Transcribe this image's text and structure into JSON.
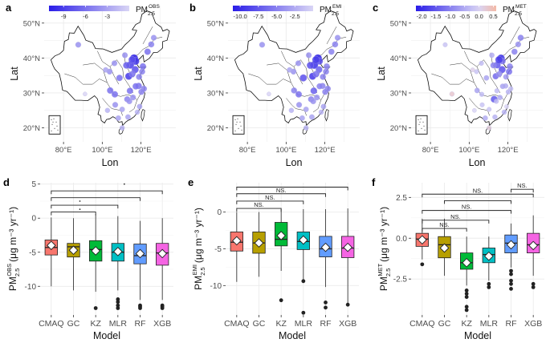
{
  "figure": {
    "map_xlabel": "Lon",
    "map_ylabel": "Lat",
    "lon_ticks": [
      "80°E",
      "100°E",
      "120°E"
    ],
    "lat_ticks": [
      "50°N",
      "40°N",
      "30°N",
      "20°N"
    ],
    "box_xlabel": "Model",
    "models": [
      "CMAQ",
      "GC",
      "KZ",
      "MLR",
      "RF",
      "XGB"
    ],
    "unit_text": "(μg m⁻³ yr⁻¹)",
    "colors": {
      "low": "#2a1de8",
      "mid": "#d9d5f5",
      "high": "#f4b9a6",
      "box_fill": [
        "#f8766d",
        "#b79f00",
        "#00ba38",
        "#00bfc4",
        "#619cff",
        "#f564e3"
      ],
      "grid": "#ebebeb"
    }
  },
  "chart_data": [
    {
      "type": "map",
      "panel": "a",
      "legend_title": "PM",
      "legend_sub": "2.5",
      "legend_sup": "OBS",
      "legend_ticks": [
        "-9",
        "-6",
        "-3"
      ],
      "color_range": [
        -11,
        0
      ],
      "lon_range": [
        70,
        138
      ],
      "lat_range": [
        16,
        55
      ],
      "points": [
        [
          116.4,
          39.9,
          -11
        ],
        [
          117.2,
          39.1,
          -9.5
        ],
        [
          114.5,
          38.0,
          -9
        ],
        [
          112.5,
          37.9,
          -7
        ],
        [
          113.6,
          34.7,
          -7
        ],
        [
          117.0,
          36.7,
          -8
        ],
        [
          118.8,
          32.0,
          -6
        ],
        [
          121.5,
          31.2,
          -5
        ],
        [
          120.2,
          30.3,
          -5
        ],
        [
          117.3,
          31.9,
          -6
        ],
        [
          114.3,
          30.6,
          -6
        ],
        [
          112.9,
          28.2,
          -5
        ],
        [
          115.9,
          28.7,
          -4
        ],
        [
          119.3,
          26.1,
          -3
        ],
        [
          113.3,
          23.1,
          -3
        ],
        [
          110.3,
          20.0,
          -2
        ],
        [
          106.5,
          29.6,
          -6
        ],
        [
          104.1,
          30.7,
          -6
        ],
        [
          106.7,
          26.6,
          -4
        ],
        [
          102.7,
          25.0,
          -2
        ],
        [
          108.9,
          34.3,
          -6
        ],
        [
          103.8,
          36.1,
          -4
        ],
        [
          101.8,
          36.6,
          -3
        ],
        [
          106.3,
          38.5,
          -4
        ],
        [
          111.7,
          40.8,
          -4
        ],
        [
          123.4,
          41.8,
          -6
        ],
        [
          125.3,
          43.9,
          -5
        ],
        [
          126.6,
          45.8,
          -4
        ],
        [
          87.6,
          43.8,
          -4
        ],
        [
          91.1,
          29.7,
          0
        ],
        [
          108.3,
          22.8,
          -3
        ],
        [
          113.7,
          34.8,
          -8
        ],
        [
          119.0,
          34.6,
          -5
        ],
        [
          120.6,
          36.1,
          -5
        ],
        [
          118.1,
          24.5,
          -2
        ],
        [
          115.4,
          39.5,
          -8
        ],
        [
          114.0,
          27.6,
          -4
        ],
        [
          110.3,
          25.3,
          -3
        ],
        [
          121.0,
          37.6,
          -6
        ],
        [
          115.5,
          35.4,
          -6
        ]
      ]
    },
    {
      "type": "map",
      "panel": "b",
      "legend_title": "PM",
      "legend_sub": "2.5",
      "legend_sup": "EMI",
      "legend_ticks": [
        "-10.0",
        "-7.5",
        "-5.0",
        "-2.5"
      ],
      "color_range": [
        -11,
        0
      ],
      "lon_range": [
        70,
        138
      ],
      "lat_range": [
        16,
        55
      ],
      "points": [
        [
          116.4,
          39.9,
          -11
        ],
        [
          117.2,
          39.1,
          -8
        ],
        [
          114.5,
          38.0,
          -10
        ],
        [
          112.5,
          37.9,
          -8
        ],
        [
          113.6,
          34.7,
          -7
        ],
        [
          117.0,
          36.7,
          -7
        ],
        [
          118.8,
          32.0,
          -5
        ],
        [
          121.5,
          31.2,
          -5
        ],
        [
          120.2,
          30.3,
          -5
        ],
        [
          117.3,
          31.9,
          -5
        ],
        [
          114.3,
          30.6,
          -7
        ],
        [
          112.9,
          28.2,
          -5
        ],
        [
          115.9,
          28.7,
          -4
        ],
        [
          119.3,
          26.1,
          -3
        ],
        [
          113.3,
          23.1,
          -3
        ],
        [
          110.3,
          20.0,
          -2
        ],
        [
          106.5,
          29.6,
          -6
        ],
        [
          104.1,
          30.7,
          -5
        ],
        [
          106.7,
          26.6,
          -4
        ],
        [
          102.7,
          25.0,
          -2
        ],
        [
          108.9,
          34.3,
          -8
        ],
        [
          103.8,
          36.1,
          -4
        ],
        [
          101.8,
          36.6,
          -3
        ],
        [
          106.3,
          38.5,
          -4
        ],
        [
          111.7,
          40.8,
          -4
        ],
        [
          123.4,
          41.8,
          -5
        ],
        [
          125.3,
          43.9,
          -5
        ],
        [
          126.6,
          45.8,
          -4
        ],
        [
          87.6,
          43.8,
          -4
        ],
        [
          91.1,
          29.7,
          0
        ],
        [
          108.3,
          22.8,
          -3
        ],
        [
          113.7,
          34.8,
          -8
        ],
        [
          119.0,
          34.6,
          -5
        ],
        [
          120.6,
          36.1,
          -5
        ],
        [
          118.1,
          24.5,
          -2
        ],
        [
          115.4,
          39.5,
          -9
        ],
        [
          114.0,
          27.6,
          -4
        ],
        [
          110.3,
          25.3,
          -3
        ],
        [
          121.0,
          37.6,
          -5
        ],
        [
          115.5,
          35.4,
          -6
        ]
      ]
    },
    {
      "type": "map",
      "panel": "c",
      "legend_title": "PM",
      "legend_sub": "2.5",
      "legend_sup": "MET",
      "legend_ticks": [
        "-2.0",
        "-1.5",
        "-1.0",
        "-0.5",
        "0.0",
        "0.5"
      ],
      "color_range": [
        -2.2,
        0.6
      ],
      "lon_range": [
        70,
        138
      ],
      "lat_range": [
        16,
        55
      ],
      "points": [
        [
          116.4,
          39.9,
          -2
        ],
        [
          117.2,
          39.1,
          -1.2
        ],
        [
          114.5,
          38.0,
          -1.5
        ],
        [
          112.5,
          37.9,
          -1.0
        ],
        [
          113.6,
          34.7,
          -0.8
        ],
        [
          117.0,
          36.7,
          -1.6
        ],
        [
          118.8,
          32.0,
          -0.5
        ],
        [
          121.5,
          31.2,
          -0.3
        ],
        [
          120.2,
          30.3,
          -0.4
        ],
        [
          117.3,
          31.9,
          -0.6
        ],
        [
          114.3,
          30.6,
          -0.3
        ],
        [
          112.9,
          28.2,
          -1.5
        ],
        [
          115.9,
          28.7,
          -0.5
        ],
        [
          119.3,
          26.1,
          0.0
        ],
        [
          113.3,
          23.1,
          -0.4
        ],
        [
          110.3,
          20.0,
          0.2
        ],
        [
          106.5,
          29.6,
          -0.3
        ],
        [
          104.1,
          30.7,
          -0.6
        ],
        [
          106.7,
          26.6,
          -0.2
        ],
        [
          102.7,
          25.0,
          0.0
        ],
        [
          108.9,
          34.3,
          -0.6
        ],
        [
          103.8,
          36.1,
          -0.2
        ],
        [
          101.8,
          36.6,
          0.1
        ],
        [
          106.3,
          38.5,
          -0.3
        ],
        [
          111.7,
          40.8,
          -0.5
        ],
        [
          123.4,
          41.8,
          -1.0
        ],
        [
          125.3,
          43.9,
          -0.8
        ],
        [
          126.6,
          45.8,
          -1.0
        ],
        [
          87.6,
          43.8,
          -0.2
        ],
        [
          91.1,
          29.7,
          0.3
        ],
        [
          108.3,
          22.8,
          -0.5
        ],
        [
          113.7,
          34.8,
          -1.1
        ],
        [
          119.0,
          34.6,
          -0.7
        ],
        [
          120.6,
          36.1,
          -1.2
        ],
        [
          118.1,
          24.5,
          -0.4
        ],
        [
          115.4,
          39.5,
          -1.8
        ],
        [
          114.0,
          27.6,
          -0.3
        ],
        [
          110.3,
          25.3,
          -0.2
        ],
        [
          121.0,
          37.6,
          -1.0
        ],
        [
          115.5,
          35.4,
          -0.9
        ]
      ]
    },
    {
      "type": "boxplot",
      "panel": "d",
      "ylabel_main": "PM",
      "ylabel_sub": "2.5",
      "ylabel_sup": "OBS",
      "ylim": [
        -14.2,
        5.2
      ],
      "yticks": [
        5,
        0,
        -5,
        -10
      ],
      "categories": [
        "CMAQ",
        "GC",
        "KZ",
        "MLR",
        "RF",
        "XGB"
      ],
      "boxes": [
        {
          "q1": -5.4,
          "median": -4.3,
          "q3": -3.2,
          "wlo": -10,
          "whi": 0.1,
          "mean": -4,
          "outliers": []
        },
        {
          "q1": -5.7,
          "median": -4.2,
          "q3": -3.7,
          "wlo": -10.6,
          "whi": 0.0,
          "mean": -4.7,
          "outliers": []
        },
        {
          "q1": -6.3,
          "median": -4.6,
          "q3": -3.3,
          "wlo": -10.8,
          "whi": 0.6,
          "mean": -4.8,
          "outliers": [
            -13.2
          ]
        },
        {
          "q1": -6.3,
          "median": -5.0,
          "q3": -3.7,
          "wlo": -10.6,
          "whi": 0.3,
          "mean": -4.9,
          "outliers": [
            -11.9,
            -12.3,
            -12.8,
            -13.2
          ]
        },
        {
          "q1": -6.7,
          "median": -5.5,
          "q3": -3.8,
          "wlo": -12,
          "whi": -0.4,
          "mean": -5.2,
          "outliers": [
            -12.8,
            -13.0,
            -13.2
          ]
        },
        {
          "q1": -6.9,
          "median": -5.1,
          "q3": -3.7,
          "wlo": -12,
          "whi": 0.0,
          "mean": -5.2,
          "outliers": [
            -12.8,
            -13.0,
            -13.2
          ]
        }
      ],
      "brackets": [
        {
          "from": "CMAQ",
          "to": "XGB",
          "y": 4.0,
          "label": ""
        },
        {
          "from": "CMAQ",
          "to": "RF",
          "y": 3.0,
          "label": ""
        },
        {
          "from": "CMAQ",
          "to": "MLR",
          "y": 1.9,
          "label": ""
        },
        {
          "from": "CMAQ",
          "to": "KZ",
          "y": 0.9,
          "label": ""
        }
      ],
      "extra_points": [
        {
          "x": "MLR",
          "y": 5.0
        },
        {
          "x": "GC",
          "y": 2.5
        },
        {
          "x": "GC",
          "y": 1.3
        }
      ]
    },
    {
      "type": "boxplot",
      "panel": "e",
      "ylabel_main": "PM",
      "ylabel_sub": "2.5",
      "ylabel_sup": "EMI",
      "ylim": [
        -14,
        4
      ],
      "yticks": [
        0,
        -5,
        -10
      ],
      "categories": [
        "CMAQ",
        "GC",
        "KZ",
        "MLR",
        "RF",
        "XGB"
      ],
      "boxes": [
        {
          "q1": -5.3,
          "median": -4.1,
          "q3": -2.7,
          "wlo": -9.5,
          "whi": 0.0,
          "mean": -3.9,
          "outliers": []
        },
        {
          "q1": -5.6,
          "median": -4.2,
          "q3": -2.7,
          "wlo": -8.8,
          "whi": 0.0,
          "mean": -4.2,
          "outliers": []
        },
        {
          "q1": -4.6,
          "median": -3.7,
          "q3": -1.4,
          "wlo": -8.0,
          "whi": 0.4,
          "mean": -3.2,
          "outliers": [
            -12.0
          ]
        },
        {
          "q1": -5.1,
          "median": -4.0,
          "q3": -2.7,
          "wlo": -9.2,
          "whi": 0.4,
          "mean": -3.8,
          "outliers": [
            -9.4,
            -13.7
          ]
        },
        {
          "q1": -6.1,
          "median": -5.0,
          "q3": -3.3,
          "wlo": -10.2,
          "whi": 0.4,
          "mean": -4.8,
          "outliers": [
            -12.3,
            -13.0
          ]
        },
        {
          "q1": -6.2,
          "median": -4.9,
          "q3": -3.3,
          "wlo": -12.4,
          "whi": 0.5,
          "mean": -4.8,
          "outliers": [
            -12.6
          ]
        }
      ],
      "brackets": [
        {
          "from": "CMAQ",
          "to": "XGB",
          "y": 3.4,
          "label": ""
        },
        {
          "from": "CMAQ",
          "to": "RF",
          "y": 2.5,
          "label": "NS."
        },
        {
          "from": "CMAQ",
          "to": "MLR",
          "y": 1.5,
          "label": "NS."
        },
        {
          "from": "CMAQ",
          "to": "KZ",
          "y": 0.5,
          "label": "NS."
        }
      ],
      "extra_points": []
    },
    {
      "type": "boxplot",
      "panel": "f",
      "ylabel_main": "PM",
      "ylabel_sub": "2.5",
      "ylabel_sup": "MET",
      "ylim": [
        -4.7,
        3.4
      ],
      "yticks": [
        2.5,
        0.0,
        -2.5
      ],
      "categories": [
        "CMAQ",
        "GC",
        "KZ",
        "MLR",
        "RF",
        "XGB"
      ],
      "boxes": [
        {
          "q1": -0.5,
          "median": -0.05,
          "q3": 0.3,
          "wlo": -1.3,
          "whi": 1.2,
          "mean": -0.1,
          "outliers": [
            -1.6
          ]
        },
        {
          "q1": -1.2,
          "median": -0.4,
          "q3": 0.1,
          "wlo": -2.3,
          "whi": 1.2,
          "mean": -0.6,
          "outliers": []
        },
        {
          "q1": -1.9,
          "median": -1.5,
          "q3": -0.9,
          "wlo": -2.9,
          "whi": 0.1,
          "mean": -1.5,
          "outliers": [
            -3.2,
            -3.4,
            -3.6,
            -4.2,
            -4.4
          ]
        },
        {
          "q1": -1.5,
          "median": -1.0,
          "q3": -0.6,
          "wlo": -2.6,
          "whi": 0.1,
          "mean": -1.1,
          "outliers": [
            -2.8,
            -3.0
          ]
        },
        {
          "q1": -0.9,
          "median": -0.3,
          "q3": 0.2,
          "wlo": -1.8,
          "whi": 0.9,
          "mean": -0.4,
          "outliers": [
            -2.0,
            -2.2,
            -2.6,
            -2.8,
            -3.1
          ]
        },
        {
          "q1": -0.9,
          "median": -0.4,
          "q3": 0.3,
          "wlo": -2.3,
          "whi": 1.4,
          "mean": -0.45,
          "outliers": [
            -2.8,
            -3.0
          ]
        }
      ],
      "brackets": [
        {
          "from": "RF",
          "to": "XGB",
          "y": 3.0,
          "label": "NS."
        },
        {
          "from": "GC",
          "to": "RF",
          "y": 2.3,
          "label": ""
        },
        {
          "from": "CMAQ",
          "to": "RF",
          "y": 1.7,
          "label": "NS."
        },
        {
          "from": "CMAQ",
          "to": "MLR",
          "y": 1.1,
          "label": "NS."
        },
        {
          "from": "CMAQ",
          "to": "XGB",
          "y": 2.7,
          "label": "NS."
        },
        {
          "from": "CMAQ",
          "to": "KZ",
          "y": 0.6,
          "label": "NS."
        }
      ],
      "extra_points": []
    }
  ]
}
